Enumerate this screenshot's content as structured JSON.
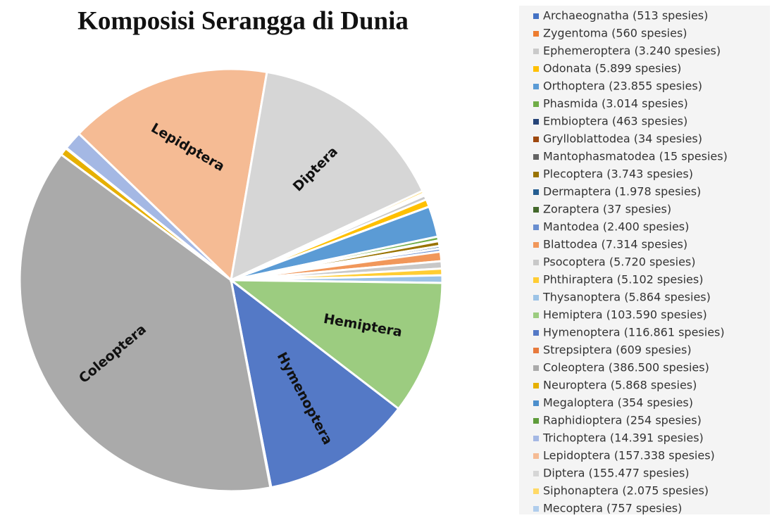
{
  "chart_data": {
    "type": "pie",
    "title": "Komposisi Serangga di Dunia",
    "categories": [
      "Archaeognatha (513 spesies)",
      "Zygentoma (560 spesies)",
      "Ephemeroptera (3.240 spesies)",
      "Odonata (5.899 spesies)",
      "Orthoptera (23.855 spesies)",
      "Phasmida (3.014 spesies)",
      "Embioptera (463 spesies)",
      "Grylloblattodea (34 spesies)",
      "Mantophasmatodea (15 spesies)",
      "Plecoptera (3.743 spesies)",
      "Dermaptera (1.978 spesies)",
      "Zoraptera (37 spesies)",
      "Mantodea (2.400 spesies)",
      "Blattodea (7.314 spesies)",
      "Psocoptera (5.720 spesies)",
      "Phthiraptera (5.102 spesies)",
      "Thysanoptera (5.864 spesies)",
      "Hemiptera (103.590 spesies)",
      "Hymenoptera (116.861 spesies)",
      "Strepsiptera (609 spesies)",
      "Coleoptera (386.500 spesies)",
      "Neuroptera (5.868 spesies)",
      "Megaloptera (354 spesies)",
      "Raphidioptera (254 spesies)",
      "Trichoptera (14.391 spesies)",
      "Lepidoptera (157.338 spesies)",
      "Diptera (155.477 spesies)",
      "Siphonaptera (2.075 spesies)",
      "Mecoptera (757 spesies)"
    ],
    "values": [
      513,
      560,
      3240,
      5899,
      23855,
      3014,
      463,
      34,
      15,
      3743,
      1978,
      37,
      2400,
      7314,
      5720,
      5102,
      5864,
      103590,
      116861,
      609,
      386500,
      5868,
      354,
      254,
      14391,
      157338,
      155477,
      2075,
      757
    ],
    "slice_labels": [
      null,
      null,
      null,
      null,
      null,
      null,
      null,
      null,
      null,
      null,
      null,
      null,
      null,
      null,
      null,
      null,
      null,
      "Hemiptera",
      "Hymenoptera",
      null,
      "Coleoptera",
      null,
      null,
      null,
      null,
      "Lepidptera",
      "Diptera",
      null,
      null
    ],
    "colors": [
      "#4472c4",
      "#ed7d31",
      "#c9c9c9",
      "#ffc000",
      "#5b9bd5",
      "#70ad47",
      "#264478",
      "#9e480e",
      "#636363",
      "#997300",
      "#255e91",
      "#43682b",
      "#698ed0",
      "#f1975a",
      "#c8c8c8",
      "#ffcd33",
      "#9cc3e6",
      "#9ccc80",
      "#5479c6",
      "#e77a3c",
      "#aaaaaa",
      "#e6b000",
      "#4d8fcc",
      "#5e9c3a",
      "#a4b8e4",
      "#f5bb94",
      "#d6d6d6",
      "#ffd966",
      "#b0cdec"
    ]
  }
}
